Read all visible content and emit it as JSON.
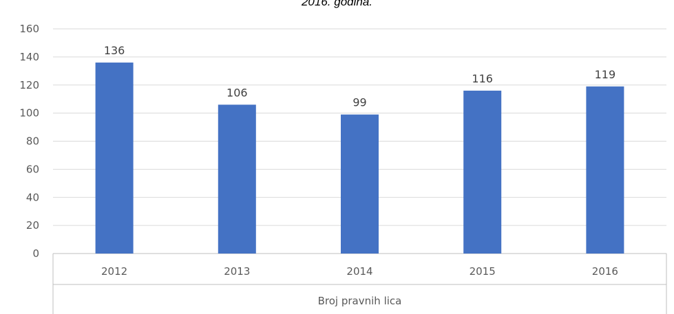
{
  "caption": "2016. godina.",
  "chart_data": {
    "type": "bar",
    "title": "",
    "categories": [
      "2012",
      "2013",
      "2014",
      "2015",
      "2016"
    ],
    "series": [
      {
        "values": [
          136,
          106,
          99,
          116,
          119
        ]
      }
    ],
    "xlabel": "Broj pravnih lica",
    "ylabel": "",
    "ylim": [
      0,
      160
    ],
    "yticks": [
      0,
      20,
      40,
      60,
      80,
      100,
      120,
      140,
      160
    ],
    "bar_color": "#4472C4",
    "grid": true,
    "data_labels": true
  }
}
